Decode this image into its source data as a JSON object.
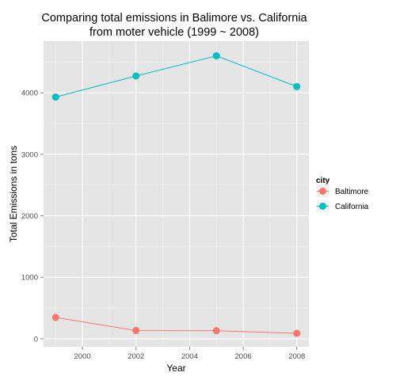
{
  "chart_data": {
    "type": "line",
    "title_lines": [
      "Comparing total emissions in Balimore vs. California",
      "from moter vehicle (1999 ~ 2008)"
    ],
    "xlabel": "Year",
    "ylabel": "Total Emissions in tons",
    "x": [
      1999,
      2002,
      2005,
      2008
    ],
    "xlim": [
      1998.55,
      2008.45
    ],
    "ylim": [
      -130,
      4840
    ],
    "x_ticks": [
      2000,
      2002,
      2004,
      2006,
      2008
    ],
    "x_tick_labels": [
      "2000",
      "2002",
      "2004",
      "2006",
      "2008"
    ],
    "y_ticks": [
      0,
      1000,
      2000,
      3000,
      4000
    ],
    "y_tick_labels": [
      "0",
      "1000",
      "2000",
      "3000",
      "4000"
    ],
    "grid": true,
    "legend": {
      "title": "city",
      "position": "right"
    },
    "series": [
      {
        "name": "Baltimore",
        "color": "#F8766D",
        "values": [
          346.82,
          134.31,
          130.43,
          88.28
        ]
      },
      {
        "name": "California",
        "color": "#00BFC4",
        "values": [
          3931.12,
          4274.03,
          4601.41,
          4101.32
        ]
      }
    ]
  }
}
